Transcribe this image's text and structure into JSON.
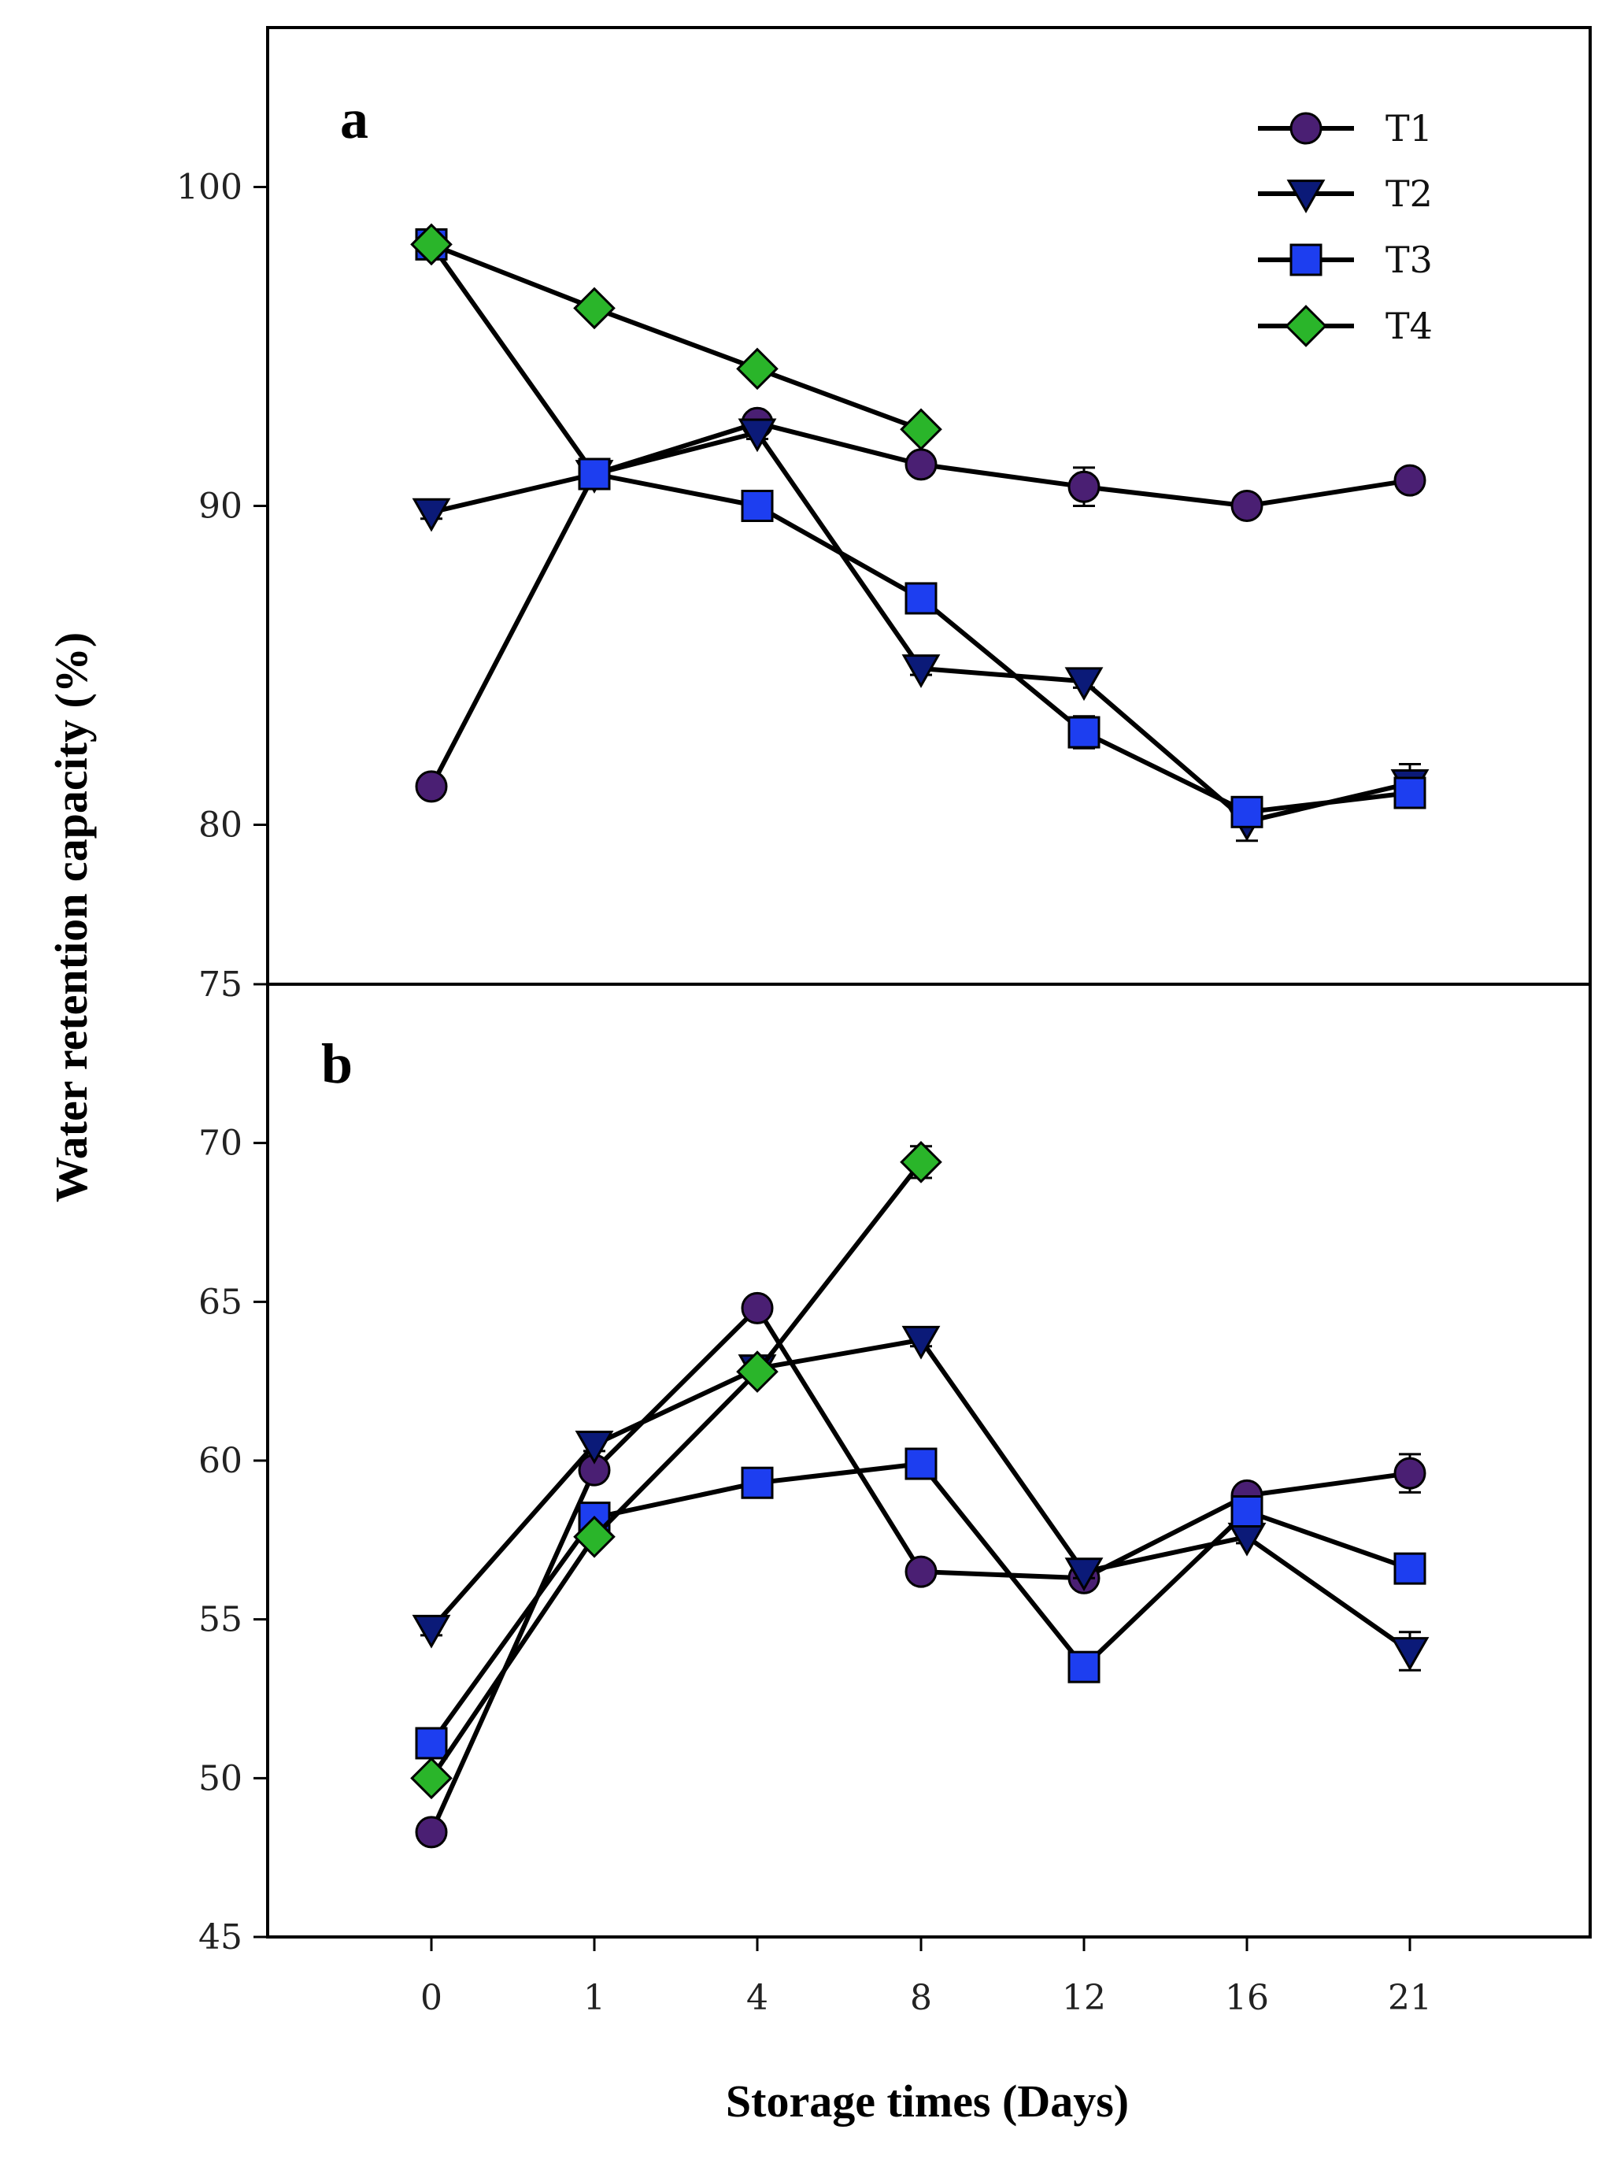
{
  "chart_data": [
    {
      "panel": "a",
      "type": "line",
      "ylim": [
        75,
        105
      ],
      "yticks": [
        75,
        80,
        90,
        100
      ],
      "legend": "top-right",
      "x": [
        "0",
        "1",
        "4",
        "8",
        "12",
        "16",
        "21"
      ],
      "series": [
        {
          "name": "T1",
          "marker": "circle",
          "color": "#4a1f73",
          "values": [
            81.2,
            91.0,
            92.6,
            91.3,
            90.6,
            90.0,
            90.8
          ],
          "errors": [
            0.2,
            0.2,
            0.2,
            0.2,
            0.6,
            0.2,
            0.2
          ]
        },
        {
          "name": "T2",
          "marker": "triangle-down",
          "color": "#0b1a78",
          "values": [
            89.8,
            91.0,
            92.3,
            84.9,
            84.5,
            80.1,
            81.3
          ],
          "errors": [
            0.2,
            0.2,
            0.2,
            0.2,
            0.2,
            0.6,
            0.6
          ]
        },
        {
          "name": "T3",
          "marker": "square",
          "color": "#1d3ef0",
          "values": [
            98.2,
            91.0,
            90.0,
            87.1,
            82.9,
            80.4,
            81.0
          ],
          "errors": [
            0.2,
            0.2,
            0.2,
            0.2,
            0.5,
            0.3,
            0.3
          ]
        },
        {
          "name": "T4",
          "marker": "diamond",
          "color": "#2ab52a",
          "values": [
            98.2,
            96.2,
            94.3,
            92.4,
            null,
            null,
            null
          ],
          "errors": [
            0.2,
            0.2,
            0.2,
            0.2,
            null,
            null,
            null
          ]
        }
      ]
    },
    {
      "panel": "b",
      "type": "line",
      "ylim": [
        45,
        75
      ],
      "yticks": [
        45,
        50,
        55,
        60,
        65,
        70,
        75
      ],
      "x": [
        "0",
        "1",
        "4",
        "8",
        "12",
        "16",
        "21"
      ],
      "series": [
        {
          "name": "T1",
          "marker": "circle",
          "color": "#4a1f73",
          "values": [
            48.3,
            59.7,
            64.8,
            56.5,
            56.3,
            58.9,
            59.6
          ],
          "errors": [
            0.2,
            0.2,
            0.2,
            0.2,
            0.2,
            0.2,
            0.6
          ]
        },
        {
          "name": "T2",
          "marker": "triangle-down",
          "color": "#0b1a78",
          "values": [
            54.7,
            60.5,
            62.9,
            63.8,
            56.5,
            57.6,
            54.0
          ],
          "errors": [
            0.2,
            0.2,
            0.2,
            0.2,
            0.2,
            0.2,
            0.6
          ]
        },
        {
          "name": "T3",
          "marker": "square",
          "color": "#1d3ef0",
          "values": [
            51.1,
            58.2,
            59.3,
            59.9,
            53.5,
            58.4,
            56.6
          ],
          "errors": [
            0.2,
            0.2,
            0.2,
            0.2,
            0.2,
            0.2,
            0.2
          ]
        },
        {
          "name": "T4",
          "marker": "diamond",
          "color": "#2ab52a",
          "values": [
            50.0,
            57.6,
            62.8,
            69.4,
            null,
            null,
            null
          ],
          "errors": [
            0.2,
            0.2,
            0.2,
            0.5,
            null,
            null,
            null
          ]
        }
      ]
    }
  ],
  "labels": {
    "ylabel": "Water retention capacity (%)",
    "xlabel": "Storage times (Days)",
    "panel_a": "a",
    "panel_b": "b"
  }
}
